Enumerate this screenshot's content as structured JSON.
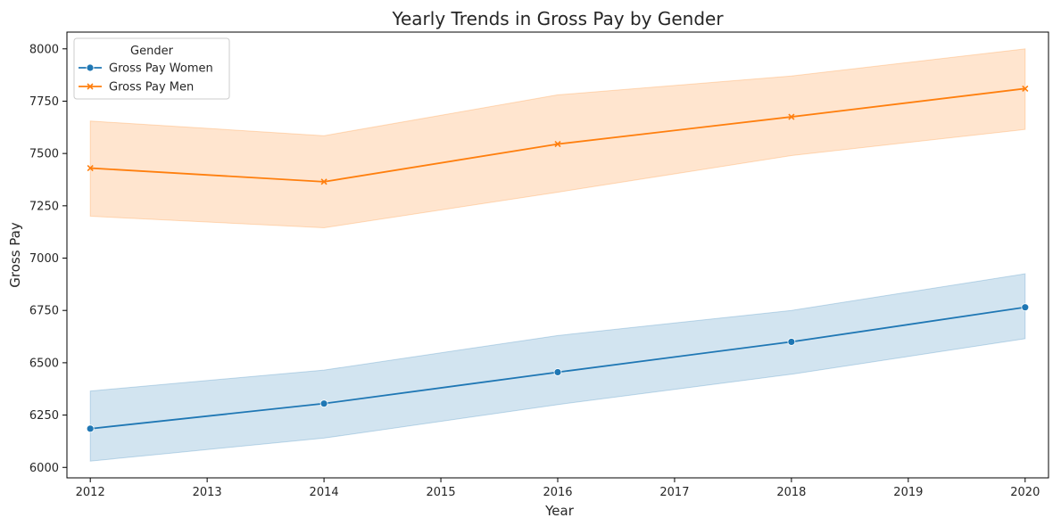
{
  "chart_data": {
    "type": "line",
    "title": "Yearly Trends in Gross Pay by Gender",
    "xlabel": "Year",
    "ylabel": "Gross Pay",
    "xlim": [
      2011.8,
      2020.2
    ],
    "ylim": [
      5950,
      8080
    ],
    "xticks": [
      2012,
      2013,
      2014,
      2015,
      2016,
      2017,
      2018,
      2019,
      2020
    ],
    "yticks": [
      6000,
      6250,
      6500,
      6750,
      7000,
      7250,
      7500,
      7750,
      8000
    ],
    "grid": false,
    "legend": {
      "title": "Gender",
      "placement": "top-left"
    },
    "x": [
      2012,
      2014,
      2016,
      2018,
      2020
    ],
    "series": [
      {
        "name": "Gross Pay Women",
        "color": "#1f77b4",
        "marker": "circle",
        "values": [
          6185,
          6305,
          6455,
          6600,
          6765
        ],
        "ci_low": [
          6030,
          6140,
          6300,
          6445,
          6615
        ],
        "ci_high": [
          6365,
          6465,
          6630,
          6750,
          6925
        ]
      },
      {
        "name": "Gross Pay Men",
        "color": "#ff7f0e",
        "marker": "x",
        "values": [
          7430,
          7365,
          7545,
          7675,
          7810
        ],
        "ci_low": [
          7200,
          7145,
          7315,
          7490,
          7615
        ],
        "ci_high": [
          7655,
          7585,
          7780,
          7870,
          8000
        ]
      }
    ]
  }
}
